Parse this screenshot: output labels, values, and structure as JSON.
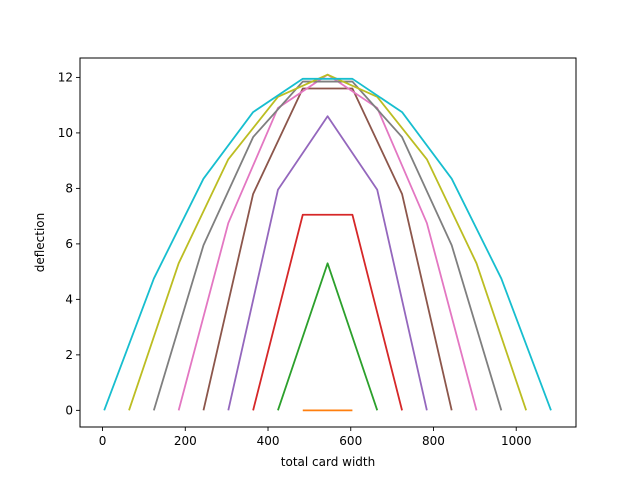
{
  "chart_data": {
    "type": "line",
    "title": "",
    "xlabel": "total card width",
    "ylabel": "deflection",
    "xlim": [
      -54.5,
      1144.5
    ],
    "ylim": [
      -0.6,
      12.7
    ],
    "xticks": [
      0,
      200,
      400,
      600,
      800,
      1000
    ],
    "yticks": [
      0,
      2,
      4,
      6,
      8,
      10,
      12
    ],
    "grid": false,
    "series": [
      {
        "color": "#ff7f0e",
        "x": [
          484,
          604
        ],
        "y": [
          0,
          0
        ]
      },
      {
        "color": "#2ca02c",
        "x": [
          424,
          544,
          664
        ],
        "y": [
          0,
          5.3,
          0
        ]
      },
      {
        "color": "#d62728",
        "x": [
          364,
          484,
          604,
          724
        ],
        "y": [
          0,
          7.05,
          7.05,
          0
        ]
      },
      {
        "color": "#9467bd",
        "x": [
          304,
          424,
          544,
          664,
          784
        ],
        "y": [
          0,
          7.95,
          10.6,
          7.95,
          0
        ]
      },
      {
        "color": "#8c564b",
        "x": [
          244,
          364,
          484,
          604,
          724,
          844
        ],
        "y": [
          0,
          7.8,
          11.6,
          11.6,
          7.8,
          0
        ]
      },
      {
        "color": "#e377c2",
        "x": [
          184,
          304,
          424,
          544,
          664,
          784,
          904
        ],
        "y": [
          0,
          6.75,
          10.9,
          12.1,
          10.9,
          6.75,
          0
        ]
      },
      {
        "color": "#7f7f7f",
        "x": [
          124,
          244,
          364,
          484,
          604,
          724,
          844,
          964
        ],
        "y": [
          0,
          5.95,
          9.85,
          11.85,
          11.85,
          9.85,
          5.95,
          0
        ]
      },
      {
        "color": "#bcbd22",
        "x": [
          64,
          184,
          304,
          424,
          544,
          664,
          784,
          904,
          1024
        ],
        "y": [
          0,
          5.3,
          9.05,
          11.3,
          12.1,
          11.3,
          9.05,
          5.3,
          0
        ]
      },
      {
        "color": "#17becf",
        "x": [
          4,
          124,
          244,
          364,
          484,
          604,
          724,
          844,
          964,
          1084
        ],
        "y": [
          0,
          4.75,
          8.35,
          10.75,
          11.95,
          11.95,
          10.75,
          8.35,
          4.75,
          0
        ]
      }
    ]
  }
}
